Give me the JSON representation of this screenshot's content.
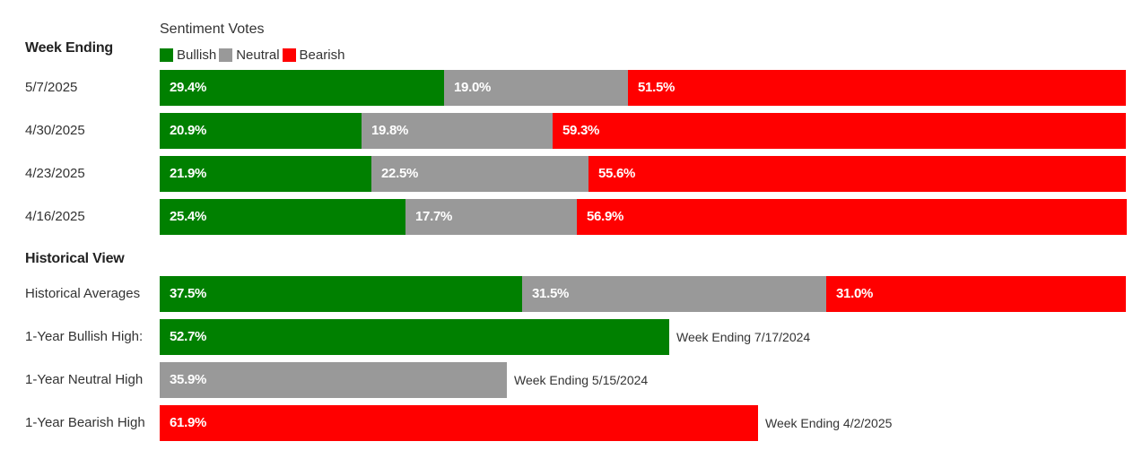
{
  "legend": {
    "title": "Sentiment Votes",
    "items": [
      {
        "label": "Bullish",
        "color": "#008000"
      },
      {
        "label": "Neutral",
        "color": "#999999"
      },
      {
        "label": "Bearish",
        "color": "#ff0000"
      }
    ]
  },
  "chart_data": {
    "type": "bar",
    "stacked": true,
    "title": "Sentiment Votes",
    "colors": {
      "Bullish": "#008000",
      "Neutral": "#999999",
      "Bearish": "#ff0000"
    },
    "sections": [
      {
        "heading": "Week Ending",
        "rows": [
          {
            "label": "5/7/2025",
            "segments": [
              {
                "series": "Bullish",
                "value": 29.4,
                "text": "29.4%"
              },
              {
                "series": "Neutral",
                "value": 19.0,
                "text": "19.0%"
              },
              {
                "series": "Bearish",
                "value": 51.5,
                "text": "51.5%"
              }
            ]
          },
          {
            "label": "4/30/2025",
            "segments": [
              {
                "series": "Bullish",
                "value": 20.9,
                "text": "20.9%"
              },
              {
                "series": "Neutral",
                "value": 19.8,
                "text": "19.8%"
              },
              {
                "series": "Bearish",
                "value": 59.3,
                "text": "59.3%"
              }
            ]
          },
          {
            "label": "4/23/2025",
            "segments": [
              {
                "series": "Bullish",
                "value": 21.9,
                "text": "21.9%"
              },
              {
                "series": "Neutral",
                "value": 22.5,
                "text": "22.5%"
              },
              {
                "series": "Bearish",
                "value": 55.6,
                "text": "55.6%"
              }
            ]
          },
          {
            "label": "4/16/2025",
            "segments": [
              {
                "series": "Bullish",
                "value": 25.4,
                "text": "25.4%"
              },
              {
                "series": "Neutral",
                "value": 17.7,
                "text": "17.7%"
              },
              {
                "series": "Bearish",
                "value": 56.9,
                "text": "56.9%"
              }
            ]
          }
        ]
      },
      {
        "heading": "Historical View",
        "rows": [
          {
            "label": "Historical Averages",
            "segments": [
              {
                "series": "Bullish",
                "value": 37.5,
                "text": "37.5%"
              },
              {
                "series": "Neutral",
                "value": 31.5,
                "text": "31.5%"
              },
              {
                "series": "Bearish",
                "value": 31.0,
                "text": "31.0%"
              }
            ]
          },
          {
            "label": "1-Year Bullish High:",
            "note": "Week Ending 7/17/2024",
            "segments": [
              {
                "series": "Bullish",
                "value": 52.7,
                "text": "52.7%"
              }
            ]
          },
          {
            "label": "1-Year Neutral High",
            "note": "Week Ending 5/15/2024",
            "segments": [
              {
                "series": "Neutral",
                "value": 35.9,
                "text": "35.9%"
              }
            ]
          },
          {
            "label": "1-Year Bearish High",
            "note": "Week Ending 4/2/2025",
            "segments": [
              {
                "series": "Bearish",
                "value": 61.9,
                "text": "61.9%"
              }
            ]
          }
        ]
      }
    ]
  }
}
